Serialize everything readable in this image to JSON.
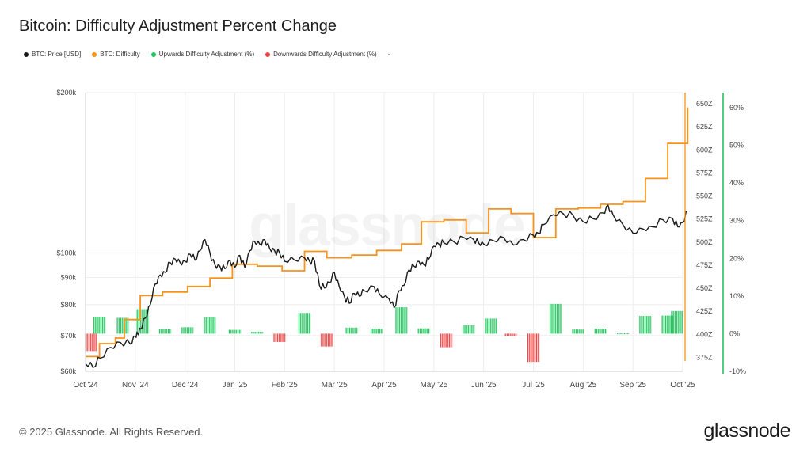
{
  "title": "Bitcoin: Difficulty Adjustment Percent Change",
  "legend": {
    "price": "BTC: Price [USD]",
    "difficulty": "BTC: Difficulty",
    "up": "Upwards Difficulty Adjustment (%)",
    "down": "Downwards Difficulty Adjustment (%)",
    "extra": "-"
  },
  "watermark": "glassnode",
  "footer": "© 2025 Glassnode. All Rights Reserved.",
  "brand": "glassnode",
  "chart_data": {
    "type": "line",
    "colors": {
      "price": "#1a1a1a",
      "difficulty": "#f7931a",
      "up": "#22c55e",
      "down": "#ef4444",
      "axis_right": "#22c55e"
    },
    "grid": true,
    "x_ticks": [
      "Oct '24",
      "Nov '24",
      "Dec '24",
      "Jan '25",
      "Feb '25",
      "Mar '25",
      "Apr '25",
      "May '25",
      "Jun '25",
      "Jul '25",
      "Aug '25",
      "Sep '25",
      "Oct '25"
    ],
    "price_axis": {
      "scale": "log",
      "ylim": [
        60000,
        200000
      ],
      "ticks": [
        {
          "v": 60000,
          "label": "$60k"
        },
        {
          "v": 70000,
          "label": "$70k"
        },
        {
          "v": 80000,
          "label": "$80k"
        },
        {
          "v": 90000,
          "label": "$90k"
        },
        {
          "v": 100000,
          "label": "$100k"
        },
        {
          "v": 200000,
          "label": "$200k"
        }
      ]
    },
    "difficulty_axis": {
      "unit": "Z",
      "ylim": [
        360,
        662
      ],
      "ticks": [
        {
          "v": 375,
          "label": "375Z"
        },
        {
          "v": 400,
          "label": "400Z"
        },
        {
          "v": 425,
          "label": "425Z"
        },
        {
          "v": 450,
          "label": "450Z"
        },
        {
          "v": 475,
          "label": "475Z"
        },
        {
          "v": 500,
          "label": "500Z"
        },
        {
          "v": 525,
          "label": "525Z"
        },
        {
          "v": 550,
          "label": "550Z"
        },
        {
          "v": 575,
          "label": "575Z"
        },
        {
          "v": 600,
          "label": "600Z"
        },
        {
          "v": 625,
          "label": "625Z"
        },
        {
          "v": 650,
          "label": "650Z"
        }
      ]
    },
    "adjustment_axis": {
      "unit": "%",
      "ylim": [
        -10,
        64
      ],
      "ticks": [
        {
          "v": -10,
          "label": "-10%"
        },
        {
          "v": 0,
          "label": "0%"
        },
        {
          "v": 10,
          "label": "10%"
        },
        {
          "v": 20,
          "label": "20%"
        },
        {
          "v": 30,
          "label": "30%"
        },
        {
          "v": 40,
          "label": "40%"
        },
        {
          "v": 50,
          "label": "50%"
        },
        {
          "v": 60,
          "label": "60%"
        }
      ]
    },
    "series": [
      {
        "name": "BTC: Price [USD]",
        "points": [
          [
            0,
            62000
          ],
          [
            0.15,
            61000
          ],
          [
            0.3,
            63500
          ],
          [
            0.5,
            66500
          ],
          [
            0.7,
            68000
          ],
          [
            0.9,
            67500
          ],
          [
            1.0,
            69800
          ],
          [
            1.05,
            70500
          ],
          [
            1.1,
            72000
          ],
          [
            1.2,
            75500
          ],
          [
            1.3,
            80000
          ],
          [
            1.4,
            87500
          ],
          [
            1.5,
            91000
          ],
          [
            1.6,
            92000
          ],
          [
            1.7,
            96000
          ],
          [
            1.8,
            97500
          ],
          [
            1.9,
            96000
          ],
          [
            2.0,
            96500
          ],
          [
            2.1,
            99500
          ],
          [
            2.2,
            97000
          ],
          [
            2.3,
            101000
          ],
          [
            2.4,
            106000
          ],
          [
            2.5,
            100000
          ],
          [
            2.6,
            95000
          ],
          [
            2.7,
            94500
          ],
          [
            2.8,
            93500
          ],
          [
            2.9,
            97000
          ],
          [
            3.0,
            94000
          ],
          [
            3.1,
            99000
          ],
          [
            3.2,
            94000
          ],
          [
            3.3,
            101000
          ],
          [
            3.4,
            105000
          ],
          [
            3.5,
            104000
          ],
          [
            3.6,
            106000
          ],
          [
            3.7,
            102000
          ],
          [
            3.8,
            101000
          ],
          [
            3.9,
            100000
          ],
          [
            4.0,
            96500
          ],
          [
            4.2,
            97000
          ],
          [
            4.4,
            98000
          ],
          [
            4.5,
            96500
          ],
          [
            4.6,
            97000
          ],
          [
            4.7,
            87000
          ],
          [
            4.8,
            86000
          ],
          [
            4.9,
            88000
          ],
          [
            5.0,
            92000
          ],
          [
            5.1,
            86500
          ],
          [
            5.2,
            83000
          ],
          [
            5.3,
            80500
          ],
          [
            5.4,
            84000
          ],
          [
            5.5,
            83000
          ],
          [
            5.6,
            85000
          ],
          [
            5.8,
            86500
          ],
          [
            5.9,
            84000
          ],
          [
            6.1,
            82000
          ],
          [
            6.2,
            79000
          ],
          [
            6.3,
            85000
          ],
          [
            6.4,
            87000
          ],
          [
            6.5,
            93000
          ],
          [
            6.6,
            94500
          ],
          [
            6.7,
            96500
          ],
          [
            6.8,
            95000
          ],
          [
            6.9,
            97500
          ],
          [
            7.0,
            103000
          ],
          [
            7.1,
            104000
          ],
          [
            7.2,
            104500
          ],
          [
            7.4,
            105000
          ],
          [
            7.6,
            107000
          ],
          [
            7.8,
            106000
          ],
          [
            7.9,
            104500
          ],
          [
            8.0,
            104000
          ],
          [
            8.2,
            105500
          ],
          [
            8.4,
            107000
          ],
          [
            8.6,
            103500
          ],
          [
            8.8,
            106000
          ],
          [
            9.0,
            108000
          ],
          [
            9.1,
            109000
          ],
          [
            9.2,
            113000
          ],
          [
            9.4,
            118000
          ],
          [
            9.6,
            118500
          ],
          [
            9.8,
            117500
          ],
          [
            10.0,
            114500
          ],
          [
            10.2,
            116000
          ],
          [
            10.4,
            119000
          ],
          [
            10.5,
            123000
          ],
          [
            10.6,
            118000
          ],
          [
            10.8,
            113000
          ],
          [
            11.0,
            109000
          ],
          [
            11.2,
            111000
          ],
          [
            11.4,
            112000
          ],
          [
            11.6,
            115500
          ],
          [
            11.8,
            116000
          ],
          [
            11.9,
            112000
          ],
          [
            12.0,
            114000
          ],
          [
            12.1,
            120000
          ]
        ]
      },
      {
        "name": "BTC: Difficulty",
        "points": [
          [
            0,
            376
          ],
          [
            0.28,
            376
          ],
          [
            0.28,
            390
          ],
          [
            0.6,
            390
          ],
          [
            0.6,
            396
          ],
          [
            0.78,
            396
          ],
          [
            0.78,
            416
          ],
          [
            1.1,
            416
          ],
          [
            1.1,
            442
          ],
          [
            1.55,
            442
          ],
          [
            1.55,
            446
          ],
          [
            2.05,
            446
          ],
          [
            2.05,
            452
          ],
          [
            2.5,
            452
          ],
          [
            2.5,
            461
          ],
          [
            2.95,
            461
          ],
          [
            2.95,
            476
          ],
          [
            3.45,
            476
          ],
          [
            3.45,
            474
          ],
          [
            3.95,
            474
          ],
          [
            3.95,
            469
          ],
          [
            4.4,
            469
          ],
          [
            4.4,
            490
          ],
          [
            4.85,
            490
          ],
          [
            4.85,
            483
          ],
          [
            5.35,
            483
          ],
          [
            5.35,
            486
          ],
          [
            5.85,
            486
          ],
          [
            5.85,
            491
          ],
          [
            6.35,
            491
          ],
          [
            6.35,
            498
          ],
          [
            6.75,
            498
          ],
          [
            6.75,
            522
          ],
          [
            7.2,
            522
          ],
          [
            7.2,
            524
          ],
          [
            7.65,
            524
          ],
          [
            7.65,
            510
          ],
          [
            8.1,
            510
          ],
          [
            8.1,
            536
          ],
          [
            8.55,
            536
          ],
          [
            8.55,
            531
          ],
          [
            9.0,
            531
          ],
          [
            9.0,
            505
          ],
          [
            9.45,
            505
          ],
          [
            9.45,
            536
          ],
          [
            9.9,
            536
          ],
          [
            9.9,
            537
          ],
          [
            10.35,
            537
          ],
          [
            10.35,
            541
          ],
          [
            10.8,
            541
          ],
          [
            10.8,
            544
          ],
          [
            11.25,
            544
          ],
          [
            11.25,
            569
          ],
          [
            11.7,
            569
          ],
          [
            11.7,
            607
          ],
          [
            12.1,
            607
          ],
          [
            12.1,
            646
          ]
        ]
      }
    ],
    "adjustments": [
      [
        0.02,
        -4.6
      ],
      [
        0.28,
        4.5
      ],
      [
        0.75,
        4.2
      ],
      [
        1.15,
        6.5
      ],
      [
        1.6,
        1.2
      ],
      [
        2.05,
        1.7
      ],
      [
        2.5,
        4.4
      ],
      [
        3.0,
        1.0
      ],
      [
        3.45,
        0.5
      ],
      [
        3.9,
        -2.2
      ],
      [
        4.4,
        5.5
      ],
      [
        4.85,
        -3.4
      ],
      [
        5.35,
        1.6
      ],
      [
        5.85,
        1.3
      ],
      [
        6.35,
        7.0
      ],
      [
        6.8,
        1.4
      ],
      [
        7.25,
        -3.6
      ],
      [
        7.7,
        2.2
      ],
      [
        8.15,
        4.0
      ],
      [
        8.55,
        -0.6
      ],
      [
        9.0,
        -7.5
      ],
      [
        9.45,
        7.9
      ],
      [
        9.9,
        1.1
      ],
      [
        10.35,
        1.3
      ],
      [
        10.8,
        0.1
      ],
      [
        11.25,
        4.7
      ],
      [
        11.7,
        4.8
      ],
      [
        12.1,
        6.0
      ]
    ]
  }
}
